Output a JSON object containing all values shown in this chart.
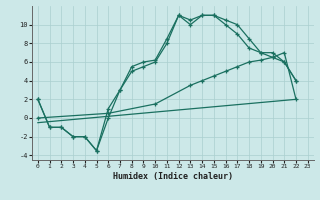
{
  "xlabel": "Humidex (Indice chaleur)",
  "background_color": "#cce8e8",
  "grid_color": "#aacfcf",
  "line_color": "#1a7060",
  "xlim": [
    -0.5,
    23.5
  ],
  "ylim": [
    -4.5,
    12
  ],
  "xticks": [
    0,
    1,
    2,
    3,
    4,
    5,
    6,
    7,
    8,
    9,
    10,
    11,
    12,
    13,
    14,
    15,
    16,
    17,
    18,
    19,
    20,
    21,
    22,
    23
  ],
  "yticks": [
    -4,
    -2,
    0,
    2,
    4,
    6,
    8,
    10
  ],
  "line1_x": [
    0,
    1,
    2,
    3,
    4,
    5,
    6,
    7,
    8,
    9,
    10,
    11,
    12,
    13,
    14,
    15,
    16,
    17,
    18,
    19,
    20,
    21,
    22
  ],
  "line1_y": [
    2,
    -1,
    -1,
    -2,
    -2,
    -3.5,
    1,
    3,
    5.5,
    6,
    6.2,
    8.5,
    11,
    10.5,
    11,
    11,
    10.5,
    10,
    8.5,
    7,
    7,
    6,
    4
  ],
  "line2_x": [
    0,
    1,
    2,
    3,
    4,
    5,
    6,
    7,
    8,
    9,
    10,
    11,
    12,
    13,
    14,
    15,
    16,
    17,
    18,
    19,
    20,
    21,
    22
  ],
  "line2_y": [
    2,
    -1,
    -1,
    -2,
    -2,
    -3.5,
    0,
    3,
    5,
    5.5,
    6,
    8,
    11,
    10,
    11,
    11,
    10,
    9,
    7.5,
    7,
    6.5,
    6,
    4
  ],
  "line3_x": [
    0,
    6,
    10,
    13,
    14,
    15,
    16,
    17,
    18,
    19,
    20,
    21,
    22
  ],
  "line3_y": [
    0,
    0.5,
    1.5,
    3.5,
    4,
    4.5,
    5,
    5.5,
    6,
    6.2,
    6.5,
    7,
    2
  ],
  "line4_x": [
    0,
    22
  ],
  "line4_y": [
    -0.5,
    2
  ]
}
